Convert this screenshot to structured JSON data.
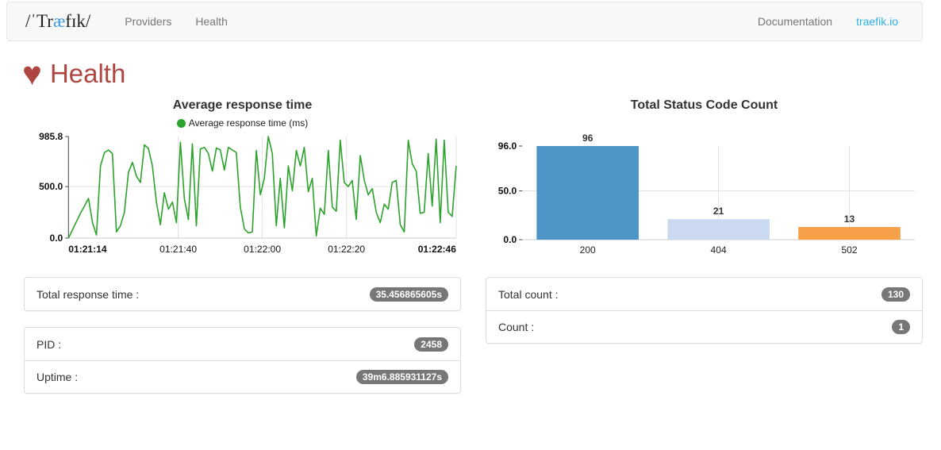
{
  "navbar": {
    "logo_prefix": "/ˈTr",
    "logo_accent": "æ",
    "logo_suffix": "fɪk/",
    "items": [
      {
        "label": "Providers"
      },
      {
        "label": "Health"
      }
    ],
    "right_items": [
      {
        "label": "Documentation"
      },
      {
        "label": "traefik.io"
      }
    ]
  },
  "page": {
    "heart_icon": "♥",
    "title": "Health"
  },
  "chart_data": [
    {
      "type": "line",
      "title": "Average response time",
      "legend": [
        {
          "label": "Average response time (ms)",
          "color": "#2ca32c"
        }
      ],
      "xlabel": "",
      "ylabel": "",
      "ylim": [
        0,
        985.8
      ],
      "y_ticks": [
        {
          "value": 985.8,
          "label": "985.8"
        },
        {
          "value": 500,
          "label": "500.0"
        },
        {
          "value": 0,
          "label": "0.0"
        }
      ],
      "x_ticks": [
        {
          "label": "01:21:14",
          "pos": 0,
          "bold": true
        },
        {
          "label": "01:21:40",
          "pos": 0.283,
          "bold": false
        },
        {
          "label": "01:22:00",
          "pos": 0.5,
          "bold": false
        },
        {
          "label": "01:22:20",
          "pos": 0.717,
          "bold": false
        },
        {
          "label": "01:22:46",
          "pos": 1,
          "bold": true
        }
      ],
      "line_color": "#2ca32c",
      "grid": true,
      "values": [
        0,
        80,
        160,
        240,
        310,
        385,
        150,
        30,
        700,
        830,
        855,
        820,
        60,
        120,
        250,
        640,
        735,
        600,
        540,
        905,
        870,
        700,
        350,
        130,
        440,
        280,
        350,
        150,
        930,
        380,
        180,
        915,
        120,
        865,
        880,
        820,
        650,
        875,
        855,
        660,
        880,
        855,
        830,
        300,
        90,
        50,
        60,
        850,
        420,
        580,
        985,
        820,
        120,
        580,
        100,
        700,
        460,
        850,
        700,
        880,
        450,
        580,
        20,
        290,
        230,
        850,
        300,
        260,
        950,
        540,
        500,
        560,
        180,
        800,
        560,
        420,
        480,
        250,
        150,
        330,
        280,
        540,
        560,
        130,
        60,
        950,
        720,
        650,
        240,
        250,
        820,
        310,
        960,
        150,
        950,
        250,
        210,
        700
      ]
    },
    {
      "type": "bar",
      "title": "Total Status Code Count",
      "xlabel": "",
      "ylabel": "",
      "ylim": [
        0,
        96
      ],
      "y_ticks": [
        {
          "value": 96,
          "label": "96.0"
        },
        {
          "value": 50,
          "label": "50.0"
        },
        {
          "value": 0,
          "label": "0.0"
        }
      ],
      "categories": [
        "200",
        "404",
        "502"
      ],
      "values": [
        96,
        21,
        13
      ],
      "value_labels": [
        "96",
        "21",
        "13"
      ],
      "bar_colors": [
        "#4e95c7",
        "#cad9ef",
        "#f6a049"
      ],
      "grid": true,
      "legend_position": "none"
    }
  ],
  "panels": {
    "left": [
      {
        "rows": [
          {
            "label": "Total response time :",
            "badge": "35.456865605s"
          }
        ]
      },
      {
        "rows": [
          {
            "label": "PID :",
            "badge": "2458"
          },
          {
            "label": "Uptime :",
            "badge": "39m6.885931127s"
          }
        ]
      }
    ],
    "right": [
      {
        "rows": [
          {
            "label": "Total count :",
            "badge": "130"
          },
          {
            "label": "Count :",
            "badge": "1"
          }
        ]
      }
    ]
  },
  "colors": {
    "accent_red": "#ae4540",
    "line_green": "#2ca32c",
    "bar_blue": "#4e95c7",
    "bar_light_blue": "#cad9ef",
    "bar_orange": "#f6a049",
    "badge_gray": "#777777",
    "navbar_bg": "#f8f8f8",
    "link_blue": "#2fb3e6",
    "logo_accent_blue": "#3a9bd9"
  }
}
